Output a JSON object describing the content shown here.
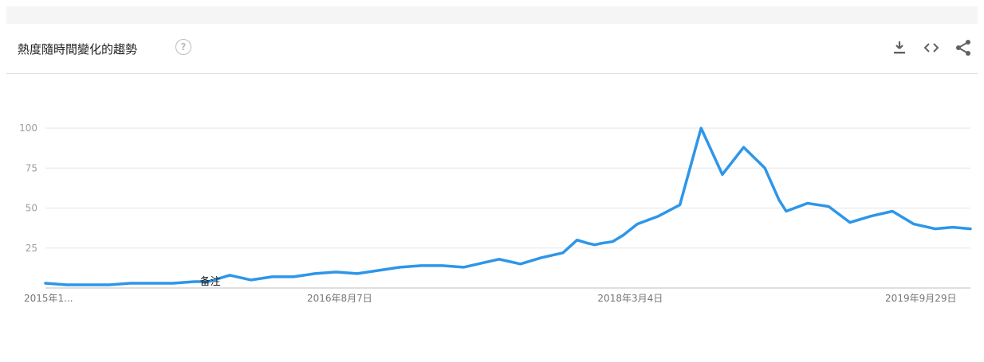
{
  "header": {
    "title": "熱度隨時間變化的趨勢",
    "help_glyph": "?",
    "icons": [
      "download-icon",
      "embed-icon",
      "share-icon"
    ]
  },
  "colors": {
    "line": "#2d96e9",
    "grid": "#e6e6e6",
    "axis": "#bdbdbd"
  },
  "chart_data": {
    "type": "line",
    "title": "熱度隨時間變化的趨勢",
    "ylim": [
      0,
      100
    ],
    "y_ticks": [
      "100",
      "75",
      "50",
      "25"
    ],
    "x_ticks": [
      "2015年1...",
      "2016年8月7日",
      "2018年3月4日",
      "2019年9月29日"
    ],
    "annotation": "备注",
    "grid": true,
    "x": [
      "2015-01-04",
      "2015-02-15",
      "2015-03-29",
      "2015-05-10",
      "2015-06-21",
      "2015-08-02",
      "2015-09-13",
      "2015-10-25",
      "2015-11-22",
      "2016-01-03",
      "2016-02-14",
      "2016-03-27",
      "2016-05-08",
      "2016-06-19",
      "2016-07-31",
      "2016-09-11",
      "2016-10-23",
      "2016-12-04",
      "2017-01-15",
      "2017-02-26",
      "2017-04-09",
      "2017-05-21",
      "2017-06-18",
      "2017-07-30",
      "2017-09-10",
      "2017-10-22",
      "2017-11-19",
      "2017-12-10",
      "2017-12-24",
      "2018-01-07",
      "2018-01-28",
      "2018-02-18",
      "2018-03-18",
      "2018-04-29",
      "2018-06-10",
      "2018-07-22",
      "2018-09-02",
      "2018-10-14",
      "2018-11-25",
      "2018-12-23",
      "2019-01-06",
      "2019-02-17",
      "2019-03-31",
      "2019-05-12",
      "2019-06-23",
      "2019-08-04",
      "2019-09-15",
      "2019-10-27",
      "2019-12-01",
      "2020-01-05"
    ],
    "values": [
      3,
      2,
      2,
      2,
      3,
      3,
      3,
      4,
      4,
      8,
      5,
      7,
      7,
      9,
      10,
      9,
      11,
      13,
      14,
      14,
      13,
      16,
      18,
      15,
      19,
      22,
      30,
      28,
      27,
      28,
      29,
      33,
      40,
      45,
      52,
      100,
      71,
      88,
      75,
      55,
      48,
      53,
      51,
      41,
      45,
      48,
      40,
      37,
      38,
      37
    ]
  }
}
